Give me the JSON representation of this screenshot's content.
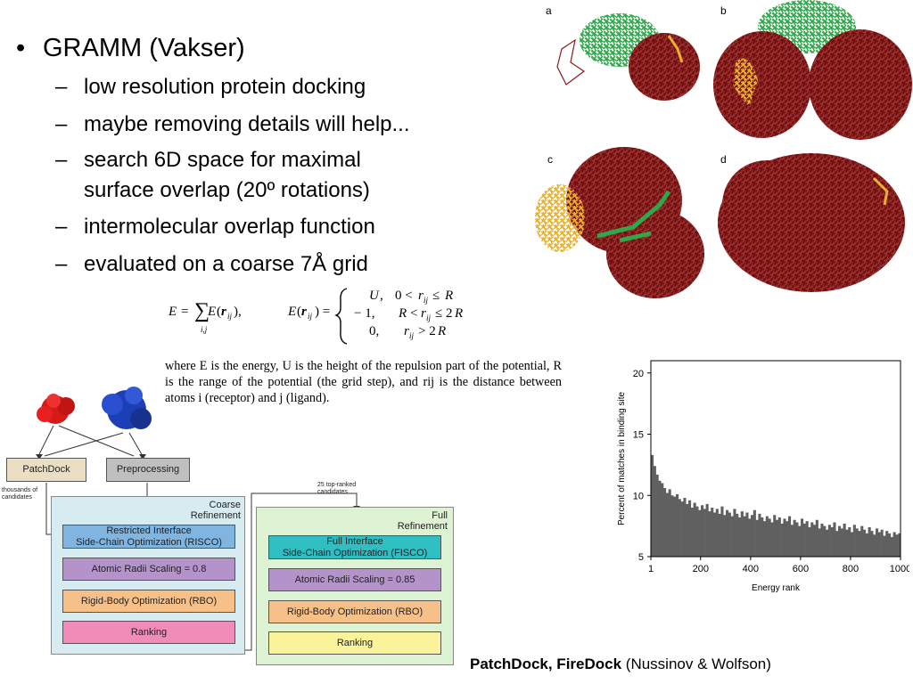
{
  "bullets": {
    "main": "GRAMM (Vakser)",
    "main_dot": "•",
    "dash": "–",
    "items": [
      "low resolution protein docking",
      "maybe removing details will help...",
      "search 6D space for maximal",
      "surface overlap (20º rotations)",
      "intermolecular overlap function",
      "evaluated on a coarse 7Å grid"
    ]
  },
  "formula": {
    "where_text": "where E is the energy, U is the height of the repulsion part of the potential, R is the range of the potential (the grid step), and rij is the distance between atoms i (receptor) and j (ligand)."
  },
  "panels": {
    "labels": [
      "a",
      "b",
      "c",
      "d"
    ]
  },
  "flow": {
    "patchdock": "PatchDock",
    "preprocessing": "Preprocessing",
    "thousands": "thousands of candidates",
    "coarse_title_1": "Coarse",
    "coarse_title_2": "Refinement",
    "risco_1": "Restricted Interface",
    "risco_2": "Side-Chain Optimization (RISCO)",
    "atomic_08": "Atomic Radii Scaling = 0.8",
    "rbo_1": "Rigid-Body Optimization (RBO)",
    "ranking_1": "Ranking",
    "top25_1": "25 top-ranked",
    "top25_2": "candidates",
    "full_title_1": "Full",
    "full_title_2": "Refinement",
    "fisco_1": "Full Interface",
    "fisco_2": "Side-Chain Optimization (FISCO)",
    "atomic_085": "Atomic Radii Scaling = 0.85",
    "rbo_2": "Rigid-Body Optimization (RBO)",
    "ranking_2": "Ranking"
  },
  "chart_data": {
    "type": "bar",
    "xlabel": "Energy rank",
    "ylabel": "Percent of matches in binding site",
    "x_ticks": [
      "1",
      "200",
      "400",
      "600",
      "800",
      "1000"
    ],
    "y_ticks": [
      "5",
      "10",
      "15",
      "20"
    ],
    "xlim": [
      1,
      1000
    ],
    "ylim": [
      5,
      21
    ],
    "bar_color": "#606060",
    "values": [
      13.3,
      12.4,
      11.7,
      11.2,
      11.0,
      10.6,
      10.2,
      10.5,
      10.0,
      9.9,
      10.1,
      9.7,
      9.5,
      9.8,
      9.3,
      9.6,
      9.0,
      9.4,
      9.1,
      8.8,
      9.2,
      8.9,
      9.3,
      8.7,
      9.0,
      8.6,
      8.9,
      8.5,
      9.1,
      8.4,
      8.8,
      8.6,
      8.3,
      8.9,
      8.5,
      8.2,
      8.7,
      8.3,
      8.6,
      8.1,
      8.4,
      8.8,
      8.0,
      8.5,
      8.2,
      7.9,
      8.3,
      8.1,
      7.8,
      8.4,
      8.0,
      8.2,
      7.7,
      8.1,
      7.9,
      8.3,
      7.6,
      8.0,
      7.8,
      7.5,
      8.1,
      7.7,
      7.9,
      7.4,
      7.8,
      7.6,
      8.0,
      7.3,
      7.7,
      7.5,
      7.2,
      7.6,
      7.4,
      7.8,
      7.1,
      7.5,
      7.3,
      7.7,
      7.2,
      7.4,
      7.0,
      7.6,
      7.3,
      7.1,
      7.5,
      7.2,
      6.9,
      7.4,
      7.1,
      6.8,
      7.3,
      7.0,
      7.2,
      6.7,
      7.1,
      6.9,
      6.6,
      7.0,
      6.8,
      6.9
    ]
  },
  "caption": {
    "bold": "PatchDock, FireDock",
    "rest": " (Nussinov & Wolfson)"
  },
  "colors": {
    "protein_red": "#8b1a1a",
    "protein_green": "#2ea84a",
    "protein_yellow": "#e8b030",
    "risco_fill": "#7fb5e0",
    "fisco_fill": "#2fbfc3",
    "atomic_fill": "#b393c9",
    "rbo_fill": "#f7c088",
    "ranking1_fill": "#f08cb8",
    "ranking2_fill": "#fbf39b",
    "coarse_bg": "#d7ecf0",
    "full_bg": "#def2d4"
  }
}
